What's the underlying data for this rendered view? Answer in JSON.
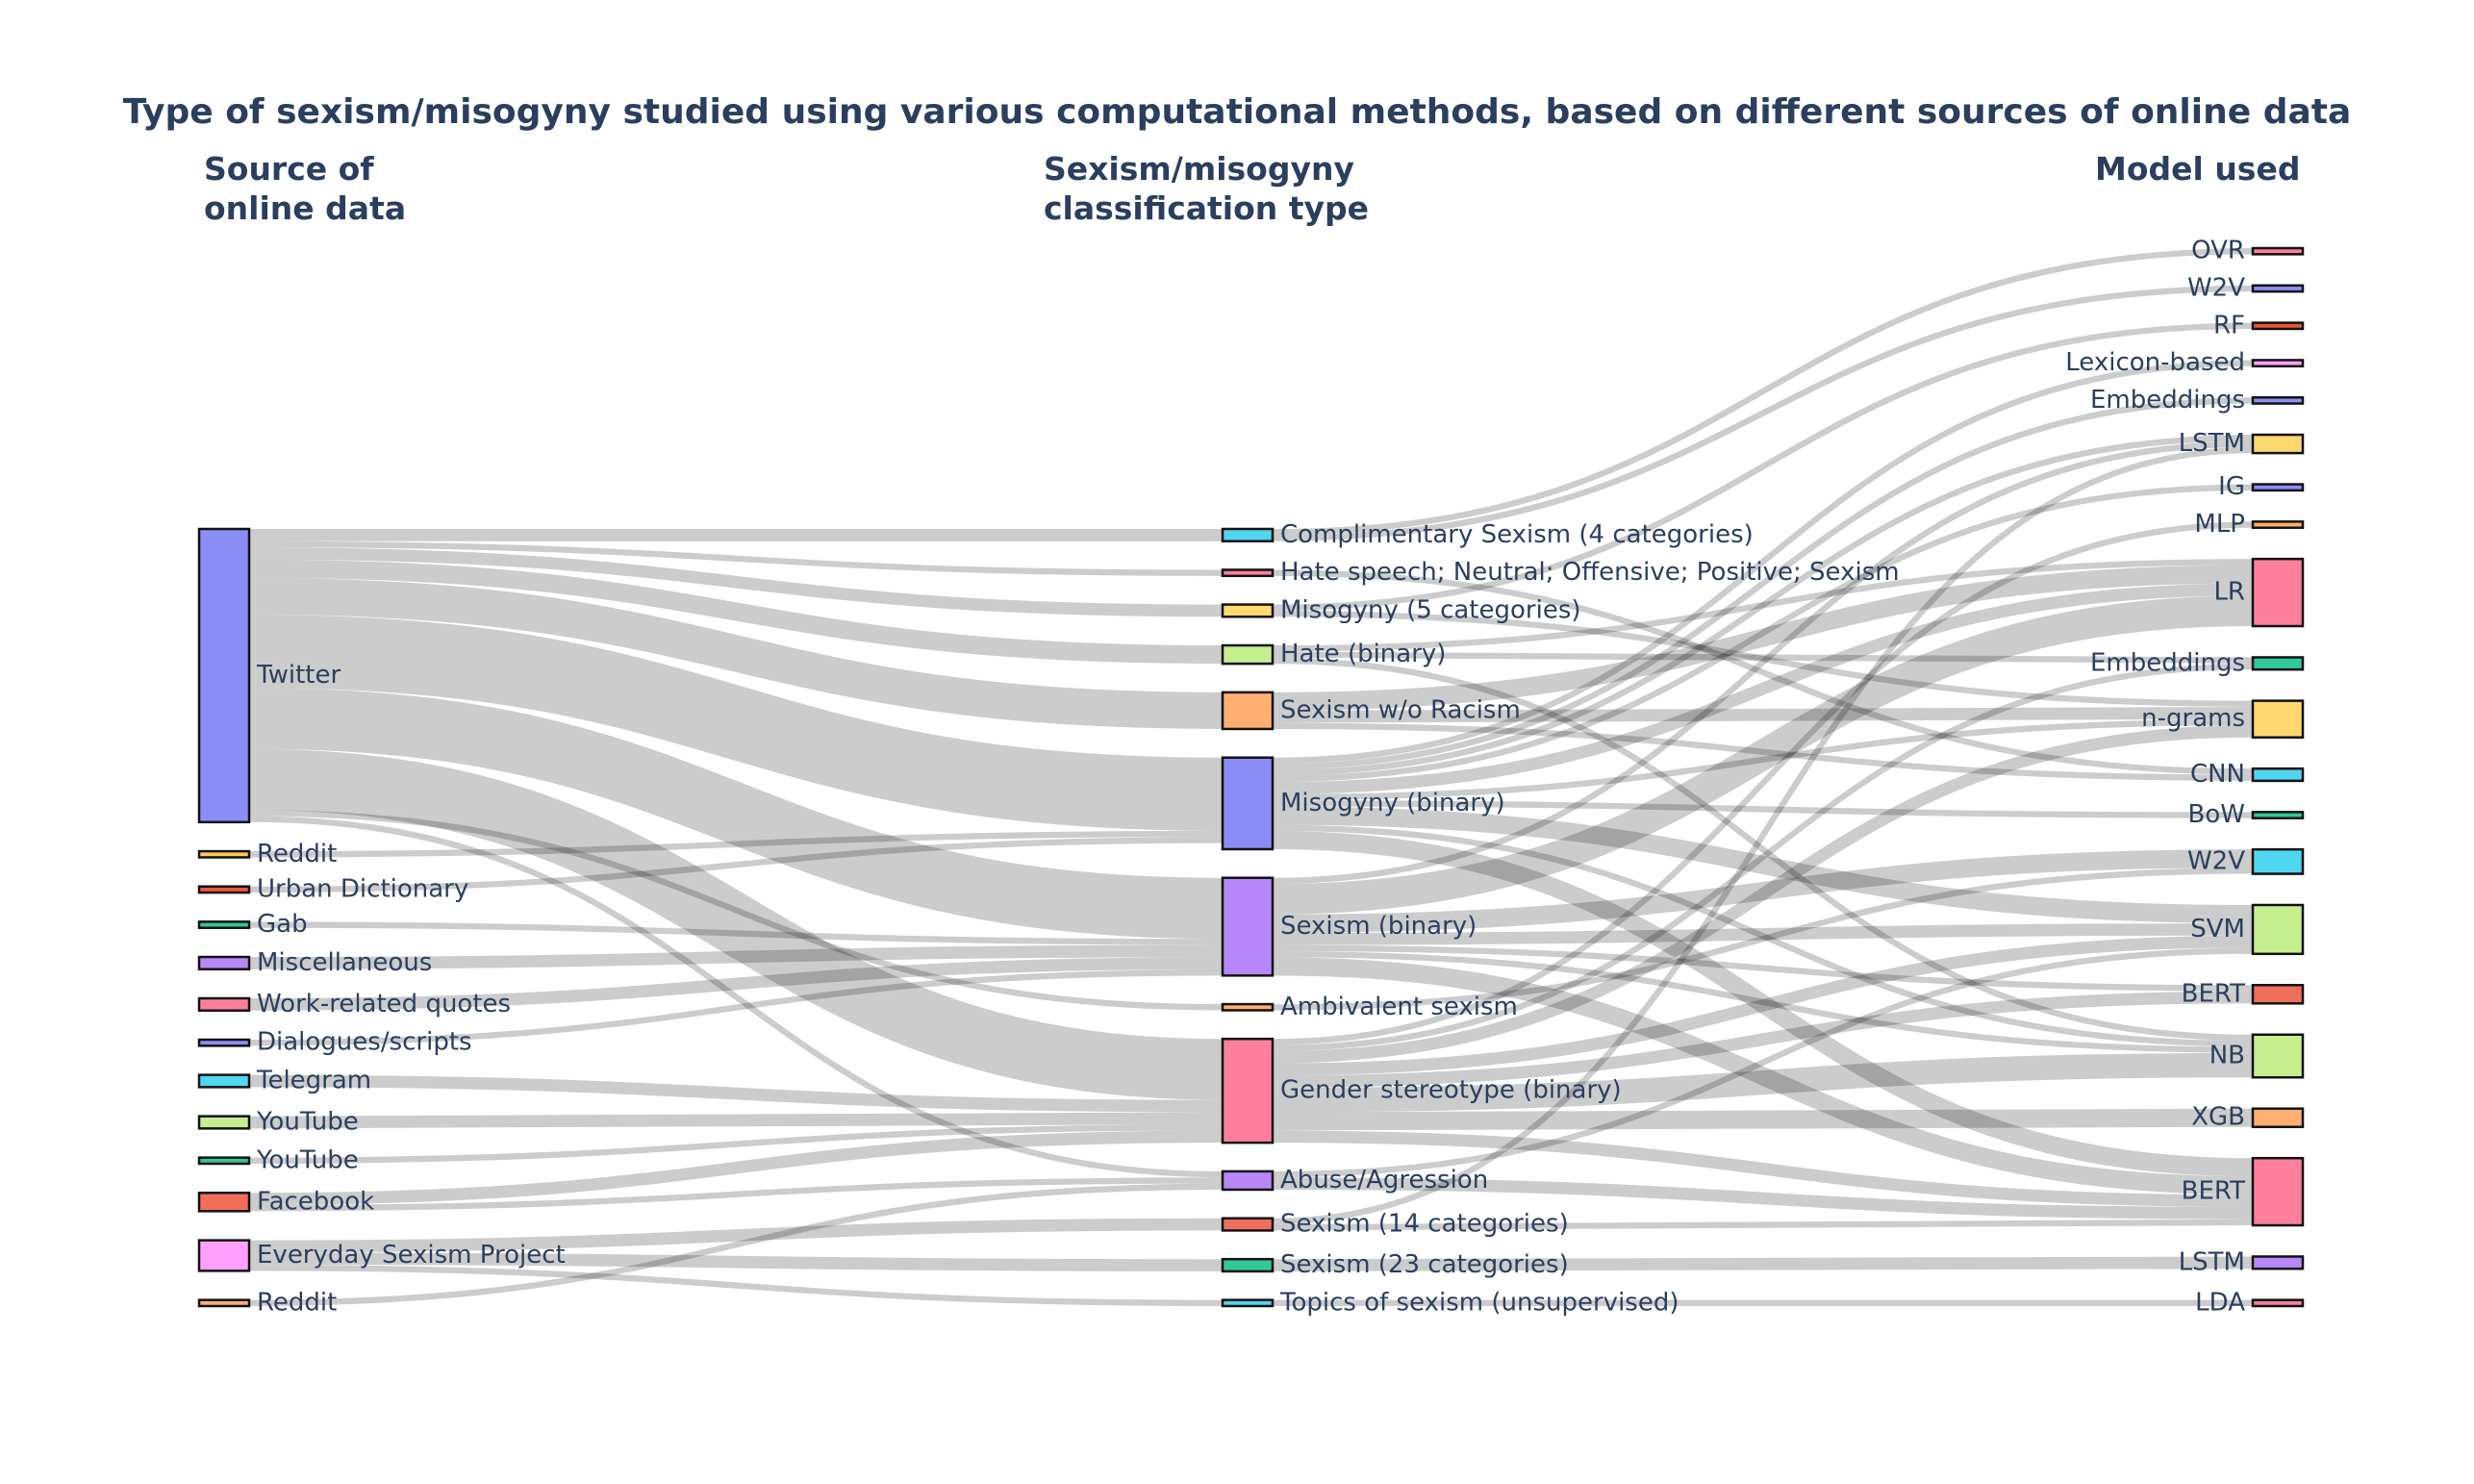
{
  "chart_data": {
    "type": "sankey",
    "title": "Type of sexism/misogyny studied using various computational methods, based on different sources of online data",
    "column_headers": [
      {
        "line1": "Source of",
        "line2": "online data"
      },
      {
        "line1": "Sexism/misogyny",
        "line2": "classification type"
      },
      {
        "line1": "Model used",
        "line2": ""
      }
    ],
    "nodes": [
      {
        "id": "twitter",
        "label": "Twitter",
        "column": 0,
        "color": "#8B8DF7"
      },
      {
        "id": "reddit1",
        "label": "Reddit",
        "column": 0,
        "color": "#FECB52"
      },
      {
        "id": "urban",
        "label": "Urban Dictionary",
        "column": 0,
        "color": "#EF553B"
      },
      {
        "id": "gab",
        "label": "Gab",
        "column": 0,
        "color": "#2FC99A"
      },
      {
        "id": "misc",
        "label": "Miscellaneous",
        "column": 0,
        "color": "#B887F7"
      },
      {
        "id": "work",
        "label": "Work-related quotes",
        "column": 0,
        "color": "#FF7F9F"
      },
      {
        "id": "dialogues",
        "label": "Dialogues/scripts",
        "column": 0,
        "color": "#8B8DF7"
      },
      {
        "id": "telegram",
        "label": "Telegram",
        "column": 0,
        "color": "#4FD6F0"
      },
      {
        "id": "youtube1",
        "label": "YouTube",
        "column": 0,
        "color": "#C5EF8F"
      },
      {
        "id": "youtube2",
        "label": "YouTube",
        "column": 0,
        "color": "#2FC99A"
      },
      {
        "id": "facebook",
        "label": "Facebook",
        "column": 0,
        "color": "#EF6F5B"
      },
      {
        "id": "everyday",
        "label": "Everyday Sexism Project",
        "column": 0,
        "color": "#FFA0FF"
      },
      {
        "id": "reddit2",
        "label": "Reddit",
        "column": 0,
        "color": "#FFAF70"
      },
      {
        "id": "comp",
        "label": "Complimentary Sexism (4 categories)",
        "column": 1,
        "color": "#4FD6F0"
      },
      {
        "id": "hatesp",
        "label": "Hate speech;  Neutral; Offensive; Positive; Sexism",
        "column": 1,
        "color": "#FF7F9F"
      },
      {
        "id": "miso5",
        "label": "Misogyny (5 categories)",
        "column": 1,
        "color": "#FFD870"
      },
      {
        "id": "hateb",
        "label": "Hate (binary)",
        "column": 1,
        "color": "#C5EF8F"
      },
      {
        "id": "swr",
        "label": "Sexism w/o Racism",
        "column": 1,
        "color": "#FFAF70"
      },
      {
        "id": "misob",
        "label": "Misogyny (binary)",
        "column": 1,
        "color": "#8B8DF7"
      },
      {
        "id": "sexb",
        "label": "Sexism (binary)",
        "column": 1,
        "color": "#B887F7"
      },
      {
        "id": "amb",
        "label": "Ambivalent sexism",
        "column": 1,
        "color": "#FFAF70"
      },
      {
        "id": "gender",
        "label": "Gender stereotype (binary)",
        "column": 1,
        "color": "#FF7F9F"
      },
      {
        "id": "abuse",
        "label": "Abuse/Agression",
        "column": 1,
        "color": "#B887F7"
      },
      {
        "id": "sex14",
        "label": "Sexism (14 categories)",
        "column": 1,
        "color": "#EF6F5B"
      },
      {
        "id": "sex23",
        "label": "Sexism (23 categories)",
        "column": 1,
        "color": "#2FC99A"
      },
      {
        "id": "topics",
        "label": "Topics of sexism  (unsupervised)",
        "column": 1,
        "color": "#4FD6F0"
      },
      {
        "id": "ovr",
        "label": "OVR",
        "column": 2,
        "color": "#FF7F9F"
      },
      {
        "id": "w2v1",
        "label": "W2V",
        "column": 2,
        "color": "#8B8DF7"
      },
      {
        "id": "rf",
        "label": "RF",
        "column": 2,
        "color": "#EF553B"
      },
      {
        "id": "lex",
        "label": "Lexicon-based",
        "column": 2,
        "color": "#FFA0FF"
      },
      {
        "id": "emb1",
        "label": "Embeddings",
        "column": 2,
        "color": "#8B8DF7"
      },
      {
        "id": "lstm1",
        "label": "LSTM",
        "column": 2,
        "color": "#FFD870"
      },
      {
        "id": "ig",
        "label": "IG",
        "column": 2,
        "color": "#8B8DF7"
      },
      {
        "id": "mlp",
        "label": "MLP",
        "column": 2,
        "color": "#FFAF70"
      },
      {
        "id": "lr",
        "label": "LR",
        "column": 2,
        "color": "#FF7F9F"
      },
      {
        "id": "emb2",
        "label": "Embeddings",
        "column": 2,
        "color": "#2FC99A"
      },
      {
        "id": "ngrams",
        "label": "n-grams",
        "column": 2,
        "color": "#FFD870"
      },
      {
        "id": "cnn",
        "label": "CNN",
        "column": 2,
        "color": "#4FD6F0"
      },
      {
        "id": "bow",
        "label": "BoW",
        "column": 2,
        "color": "#2FC99A"
      },
      {
        "id": "w2v2",
        "label": "W2V",
        "column": 2,
        "color": "#4FD6F0"
      },
      {
        "id": "svm",
        "label": "SVM",
        "column": 2,
        "color": "#C5EF8F"
      },
      {
        "id": "bert1",
        "label": "BERT",
        "column": 2,
        "color": "#EF6F5B"
      },
      {
        "id": "nb",
        "label": "NB",
        "column": 2,
        "color": "#C5EF8F"
      },
      {
        "id": "xgb",
        "label": "XGB",
        "column": 2,
        "color": "#FFAF70"
      },
      {
        "id": "bert2",
        "label": "BERT",
        "column": 2,
        "color": "#FF7F9F"
      },
      {
        "id": "lstm2",
        "label": "LSTM",
        "column": 2,
        "color": "#B887F7"
      },
      {
        "id": "lda",
        "label": "LDA",
        "column": 2,
        "color": "#FF7F9F"
      }
    ],
    "links": [
      {
        "source": "twitter",
        "target": "comp",
        "value": 2
      },
      {
        "source": "twitter",
        "target": "hatesp",
        "value": 1
      },
      {
        "source": "twitter",
        "target": "miso5",
        "value": 2
      },
      {
        "source": "twitter",
        "target": "hateb",
        "value": 3
      },
      {
        "source": "twitter",
        "target": "swr",
        "value": 6
      },
      {
        "source": "twitter",
        "target": "misob",
        "value": 12
      },
      {
        "source": "twitter",
        "target": "sexb",
        "value": 10
      },
      {
        "source": "twitter",
        "target": "gender",
        "value": 10
      },
      {
        "source": "twitter",
        "target": "amb",
        "value": 1
      },
      {
        "source": "twitter",
        "target": "abuse",
        "value": 1
      },
      {
        "source": "reddit1",
        "target": "misob",
        "value": 1
      },
      {
        "source": "urban",
        "target": "misob",
        "value": 1
      },
      {
        "source": "gab",
        "target": "sexb",
        "value": 1
      },
      {
        "source": "misc",
        "target": "sexb",
        "value": 2
      },
      {
        "source": "work",
        "target": "sexb",
        "value": 2
      },
      {
        "source": "dialogues",
        "target": "sexb",
        "value": 1
      },
      {
        "source": "telegram",
        "target": "gender",
        "value": 2
      },
      {
        "source": "youtube1",
        "target": "gender",
        "value": 2
      },
      {
        "source": "youtube2",
        "target": "gender",
        "value": 1
      },
      {
        "source": "facebook",
        "target": "gender",
        "value": 2
      },
      {
        "source": "facebook",
        "target": "abuse",
        "value": 1
      },
      {
        "source": "everyday",
        "target": "sex14",
        "value": 2
      },
      {
        "source": "everyday",
        "target": "sex23",
        "value": 2
      },
      {
        "source": "everyday",
        "target": "topics",
        "value": 1
      },
      {
        "source": "reddit2",
        "target": "abuse",
        "value": 1
      },
      {
        "source": "comp",
        "target": "ovr",
        "value": 1
      },
      {
        "source": "comp",
        "target": "w2v1",
        "value": 1
      },
      {
        "source": "hatesp",
        "target": "cnn",
        "value": 1
      },
      {
        "source": "miso5",
        "target": "rf",
        "value": 1
      },
      {
        "source": "miso5",
        "target": "ngrams",
        "value": 1
      },
      {
        "source": "hateb",
        "target": "lr",
        "value": 1
      },
      {
        "source": "hateb",
        "target": "emb2",
        "value": 1
      },
      {
        "source": "hateb",
        "target": "nb",
        "value": 1
      },
      {
        "source": "swr",
        "target": "lr",
        "value": 3
      },
      {
        "source": "swr",
        "target": "ngrams",
        "value": 2
      },
      {
        "source": "swr",
        "target": "cnn",
        "value": 1
      },
      {
        "source": "misob",
        "target": "lex",
        "value": 1
      },
      {
        "source": "misob",
        "target": "emb1",
        "value": 1
      },
      {
        "source": "misob",
        "target": "lstm1",
        "value": 1
      },
      {
        "source": "misob",
        "target": "ig",
        "value": 1
      },
      {
        "source": "misob",
        "target": "lr",
        "value": 2
      },
      {
        "source": "misob",
        "target": "ngrams",
        "value": 1
      },
      {
        "source": "misob",
        "target": "bow",
        "value": 1
      },
      {
        "source": "misob",
        "target": "svm",
        "value": 3
      },
      {
        "source": "misob",
        "target": "nb",
        "value": 1
      },
      {
        "source": "misob",
        "target": "bert2",
        "value": 3
      },
      {
        "source": "sexb",
        "target": "lstm1",
        "value": 1
      },
      {
        "source": "sexb",
        "target": "lr",
        "value": 5
      },
      {
        "source": "sexb",
        "target": "w2v2",
        "value": 3
      },
      {
        "source": "sexb",
        "target": "svm",
        "value": 2
      },
      {
        "source": "sexb",
        "target": "bert1",
        "value": 1
      },
      {
        "source": "sexb",
        "target": "nb",
        "value": 1
      },
      {
        "source": "sexb",
        "target": "bert2",
        "value": 3
      },
      {
        "source": "amb",
        "target": "w2v2",
        "value": 1
      },
      {
        "source": "gender",
        "target": "mlp",
        "value": 1
      },
      {
        "source": "gender",
        "target": "emb2",
        "value": 1
      },
      {
        "source": "gender",
        "target": "ngrams",
        "value": 2
      },
      {
        "source": "gender",
        "target": "svm",
        "value": 2
      },
      {
        "source": "gender",
        "target": "bert1",
        "value": 2
      },
      {
        "source": "gender",
        "target": "nb",
        "value": 4
      },
      {
        "source": "gender",
        "target": "xgb",
        "value": 3
      },
      {
        "source": "gender",
        "target": "bert2",
        "value": 2
      },
      {
        "source": "abuse",
        "target": "svm",
        "value": 1
      },
      {
        "source": "abuse",
        "target": "bert2",
        "value": 2
      },
      {
        "source": "sex14",
        "target": "lstm1",
        "value": 1
      },
      {
        "source": "sex14",
        "target": "bert2",
        "value": 1
      },
      {
        "source": "sex23",
        "target": "lstm2",
        "value": 2
      },
      {
        "source": "topics",
        "target": "lda",
        "value": 1
      }
    ]
  }
}
